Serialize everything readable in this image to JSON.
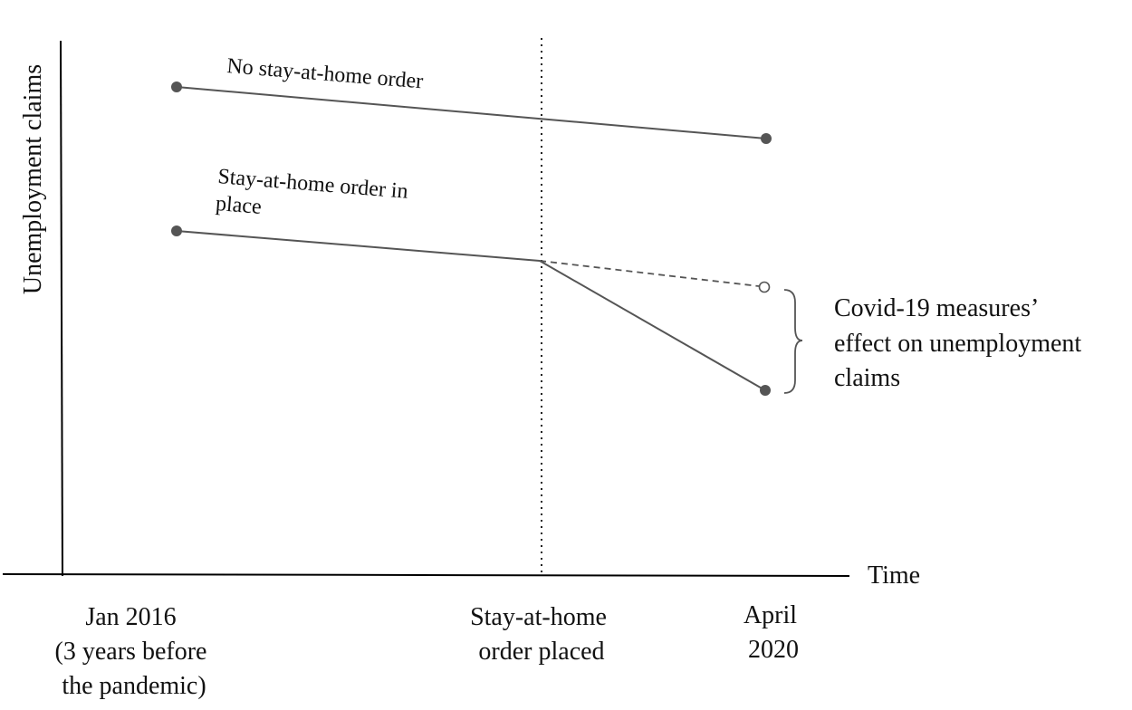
{
  "diagram": {
    "y_axis_label": "Unemployment claims",
    "x_axis_label": "Time",
    "x_ticks": [
      {
        "lines": [
          "Jan 2016",
          "(3 years before",
          "the pandemic)"
        ]
      },
      {
        "lines": [
          "Stay-at-home",
          "order placed"
        ]
      },
      {
        "lines": [
          "April",
          "2020"
        ]
      }
    ],
    "series": [
      {
        "name_lines": [
          "No stay-at-home order"
        ]
      },
      {
        "name_lines": [
          "Stay-at-home order in",
          "place"
        ]
      }
    ],
    "annotation_lines": [
      "Covid-19 measures’",
      "effect on unemployment",
      "claims"
    ],
    "colors": {
      "line": "#555555",
      "axis": "#000000",
      "point": "#555555",
      "text": "#111111"
    }
  }
}
